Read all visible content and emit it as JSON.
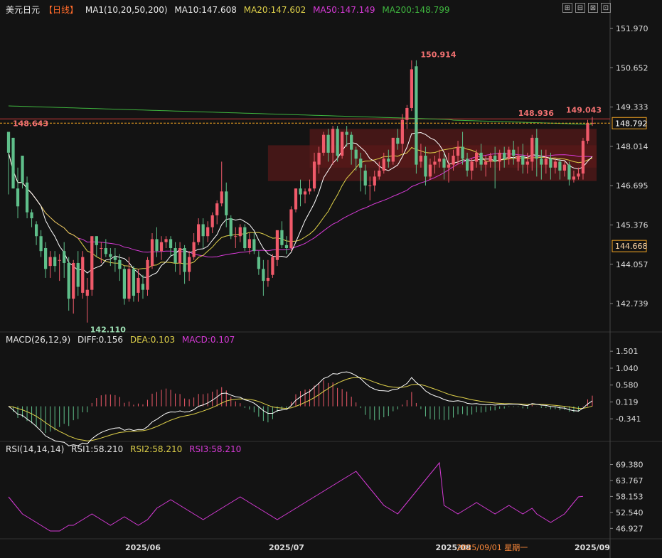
{
  "header": {
    "ticker": "美元日元",
    "period": "【日线】",
    "ma_title": "MA1(10,20,50,200)",
    "ma10": "MA10:147.608",
    "ma20": "MA20:147.602",
    "ma50": "MA50:147.149",
    "ma200": "MA200:148.799",
    "tools": [
      "⊞",
      "⊟",
      "⊠",
      "⊡"
    ]
  },
  "colors": {
    "up": "#f05a6a",
    "down": "#5fbf8a",
    "ma10": "#ffffff",
    "ma20": "#e0d24a",
    "ma50": "#d63ad6",
    "ma200": "#3fb63f",
    "zone": "#5a1a1a",
    "last": "#f5a623"
  },
  "macd_header": {
    "title": "MACD(26,12,9)",
    "diff": "DIFF:0.156",
    "dea": "DEA:0.103",
    "macd": "MACD:0.107"
  },
  "rsi_header": {
    "title": "RSI(14,14,14)",
    "rsi1": "RSI1:58.210",
    "rsi2": "RSI2:58.210",
    "rsi3": "RSI3:58.210"
  },
  "chart_data": [
    {
      "type": "candlestick",
      "series": "USD/JPY daily",
      "ylim": [
        142.0,
        152.4
      ],
      "y_ticks": [
        "151.970",
        "150.652",
        "149.333",
        "148.014",
        "146.695",
        "145.376",
        "144.057",
        "142.739"
      ],
      "x_labels": [
        {
          "i": 29,
          "label": "2025/06"
        },
        {
          "i": 60,
          "label": "2025/07"
        },
        {
          "i": 96,
          "label": "2025/08"
        },
        {
          "i": 126,
          "label": "2025/09"
        }
      ],
      "date_label": {
        "i": 113,
        "label": "2025/09/01 星期一"
      },
      "annotations": [
        {
          "i": 17,
          "value": 142.11,
          "label": "142.110",
          "pos": "below"
        },
        {
          "i": 88,
          "value": 150.914,
          "label": "150.914",
          "pos": "above"
        },
        {
          "i": 0,
          "value": 148.643,
          "label": "148.643",
          "pos": "line"
        },
        {
          "i": 118,
          "value": 148.936,
          "label": "148.936",
          "pos": "left"
        },
        {
          "i": 120,
          "value": 149.043,
          "label": "149.043",
          "pos": "right"
        }
      ],
      "horizontal_line": 148.936,
      "last_price": {
        "value": 148.792,
        "label": "148.792"
      },
      "marker_price": {
        "value": 144.668,
        "label": "144.668"
      },
      "zones": [
        {
          "i_start": 65,
          "i_end": 127,
          "low": 147.3,
          "high": 148.6
        },
        {
          "i_start": 56,
          "i_end": 127,
          "low": 146.85,
          "high": 148.05
        }
      ],
      "candles": [
        [
          148.5,
          148.3,
          147.8,
          146.4
        ],
        [
          148.3,
          148.3,
          146.6,
          146.6
        ],
        [
          146.6,
          147.3,
          146.0,
          145.6
        ],
        [
          147.7,
          147.7,
          146.8,
          146.6
        ],
        [
          146.8,
          147.0,
          145.8,
          145.6
        ],
        [
          145.8,
          145.9,
          145.6,
          145.3
        ],
        [
          145.4,
          145.5,
          145.0,
          144.7
        ],
        [
          145.0,
          145.2,
          144.5,
          144.3
        ],
        [
          144.6,
          144.8,
          143.9,
          143.6
        ],
        [
          144.0,
          144.5,
          144.3,
          143.6
        ],
        [
          144.3,
          144.5,
          144.0,
          143.8
        ],
        [
          144.2,
          144.4,
          144.2,
          143.5
        ],
        [
          144.5,
          144.8,
          144.1,
          143.6
        ],
        [
          144.1,
          144.3,
          142.9,
          142.5
        ],
        [
          142.9,
          144.2,
          144.1,
          142.4
        ],
        [
          144.1,
          144.5,
          143.3,
          143.0
        ],
        [
          143.1,
          144.5,
          144.3,
          142.9
        ],
        [
          143.0,
          143.6,
          143.2,
          142.1
        ],
        [
          143.2,
          145.0,
          145.0,
          143.0
        ],
        [
          145.0,
          145.0,
          144.7,
          144.3
        ],
        [
          144.6,
          144.8,
          144.6,
          144.1
        ],
        [
          144.6,
          144.9,
          144.4,
          144.3
        ],
        [
          144.4,
          144.6,
          144.3,
          144.0
        ],
        [
          144.3,
          144.6,
          144.2,
          143.8
        ],
        [
          144.2,
          144.4,
          143.9,
          143.5
        ],
        [
          143.9,
          144.0,
          142.9,
          142.7
        ],
        [
          142.9,
          144.3,
          143.9,
          142.8
        ],
        [
          143.9,
          144.0,
          143.0,
          142.8
        ],
        [
          143.1,
          143.9,
          143.6,
          142.8
        ],
        [
          143.4,
          143.7,
          143.2,
          142.9
        ],
        [
          143.2,
          144.3,
          144.2,
          143.0
        ],
        [
          144.0,
          145.1,
          144.9,
          143.9
        ],
        [
          144.9,
          145.3,
          144.5,
          144.3
        ],
        [
          144.5,
          145.0,
          144.8,
          144.2
        ],
        [
          144.8,
          145.0,
          144.9,
          144.6
        ],
        [
          144.9,
          145.0,
          144.6,
          144.3
        ],
        [
          144.6,
          144.8,
          144.1,
          143.8
        ],
        [
          144.1,
          144.8,
          144.6,
          143.7
        ],
        [
          144.6,
          144.7,
          143.8,
          143.4
        ],
        [
          143.8,
          144.5,
          144.3,
          143.5
        ],
        [
          144.3,
          145.1,
          144.8,
          144.2
        ],
        [
          144.8,
          145.6,
          145.4,
          144.7
        ],
        [
          145.4,
          145.6,
          145.0,
          144.6
        ],
        [
          145.0,
          145.5,
          145.3,
          144.8
        ],
        [
          145.3,
          145.8,
          145.7,
          145.1
        ],
        [
          145.7,
          146.2,
          146.1,
          145.4
        ],
        [
          146.1,
          147.5,
          146.5,
          146.0
        ],
        [
          146.5,
          146.8,
          145.7,
          145.3
        ],
        [
          145.6,
          145.7,
          145.0,
          144.9
        ],
        [
          145.0,
          145.3,
          145.0,
          144.6
        ],
        [
          145.0,
          145.4,
          145.3,
          144.8
        ],
        [
          145.3,
          145.4,
          144.6,
          144.5
        ],
        [
          144.6,
          145.1,
          144.9,
          144.4
        ],
        [
          144.9,
          145.1,
          144.5,
          144.4
        ],
        [
          144.3,
          144.5,
          143.9,
          143.7
        ],
        [
          143.9,
          144.2,
          143.5,
          143.0
        ],
        [
          143.5,
          144.2,
          143.6,
          143.3
        ],
        [
          143.7,
          144.4,
          144.3,
          143.6
        ],
        [
          144.2,
          145.2,
          145.2,
          144.0
        ],
        [
          145.2,
          145.5,
          144.7,
          144.6
        ],
        [
          144.7,
          145.0,
          144.6,
          144.4
        ],
        [
          144.6,
          146.0,
          145.9,
          144.5
        ],
        [
          145.9,
          146.6,
          146.6,
          145.8
        ],
        [
          146.6,
          146.9,
          146.4,
          146.0
        ],
        [
          146.4,
          146.6,
          146.5,
          146.1
        ],
        [
          146.5,
          146.9,
          146.6,
          146.4
        ],
        [
          146.6,
          147.8,
          147.5,
          146.5
        ],
        [
          147.4,
          148.0,
          147.8,
          147.1
        ],
        [
          147.8,
          148.5,
          148.4,
          147.7
        ],
        [
          148.4,
          148.6,
          147.8,
          147.5
        ],
        [
          147.8,
          148.7,
          148.6,
          147.4
        ],
        [
          148.6,
          148.7,
          147.7,
          147.5
        ],
        [
          147.7,
          148.3,
          148.5,
          147.6
        ],
        [
          148.5,
          148.7,
          148.4,
          148.0
        ],
        [
          148.4,
          148.5,
          147.9,
          147.4
        ],
        [
          147.9,
          148.0,
          147.6,
          147.2
        ],
        [
          147.6,
          147.8,
          147.3,
          146.5
        ],
        [
          147.2,
          147.4,
          146.7,
          146.4
        ],
        [
          146.7,
          147.0,
          146.7,
          146.2
        ],
        [
          146.7,
          147.2,
          147.0,
          146.5
        ],
        [
          147.0,
          147.5,
          147.2,
          146.9
        ],
        [
          147.2,
          147.8,
          147.6,
          147.1
        ],
        [
          147.6,
          147.9,
          147.5,
          147.3
        ],
        [
          147.5,
          148.3,
          148.3,
          147.4
        ],
        [
          148.3,
          148.6,
          148.1,
          147.9
        ],
        [
          148.1,
          149.1,
          148.9,
          147.8
        ],
        [
          148.9,
          149.4,
          149.3,
          148.6
        ],
        [
          149.3,
          150.9,
          150.6,
          149.2
        ],
        [
          150.7,
          150.9,
          147.4,
          147.1
        ],
        [
          147.5,
          148.1,
          147.7,
          147.3
        ],
        [
          147.7,
          148.0,
          147.0,
          146.7
        ],
        [
          147.0,
          147.6,
          147.4,
          146.9
        ],
        [
          147.4,
          147.7,
          147.5,
          147.1
        ],
        [
          147.5,
          147.9,
          147.6,
          147.3
        ],
        [
          147.6,
          147.8,
          147.3,
          146.9
        ],
        [
          147.3,
          147.8,
          147.4,
          146.8
        ],
        [
          147.4,
          147.9,
          147.7,
          147.2
        ],
        [
          147.7,
          148.2,
          148.0,
          147.4
        ],
        [
          148.0,
          148.5,
          147.6,
          147.4
        ],
        [
          147.6,
          147.8,
          147.2,
          147.0
        ],
        [
          147.2,
          147.6,
          147.5,
          146.9
        ],
        [
          147.5,
          147.9,
          147.8,
          147.3
        ],
        [
          147.8,
          148.1,
          147.4,
          147.2
        ],
        [
          147.4,
          147.7,
          147.5,
          147.0
        ],
        [
          147.5,
          147.8,
          147.7,
          147.3
        ],
        [
          147.7,
          148.0,
          147.5,
          146.6
        ],
        [
          147.5,
          147.9,
          147.8,
          147.2
        ],
        [
          147.8,
          148.0,
          147.6,
          147.3
        ],
        [
          147.6,
          148.0,
          147.9,
          147.4
        ],
        [
          147.9,
          148.2,
          147.7,
          147.4
        ],
        [
          147.5,
          148.0,
          147.7,
          147.2
        ],
        [
          147.7,
          148.1,
          147.4,
          147.1
        ],
        [
          147.4,
          147.8,
          147.5,
          147.1
        ],
        [
          147.5,
          148.4,
          148.3,
          147.2
        ],
        [
          148.3,
          148.6,
          147.6,
          147.0
        ],
        [
          147.6,
          147.9,
          147.4,
          146.9
        ],
        [
          147.4,
          147.9,
          147.6,
          147.1
        ],
        [
          147.6,
          147.8,
          147.3,
          146.9
        ],
        [
          147.3,
          147.6,
          147.5,
          147.1
        ],
        [
          147.5,
          147.6,
          147.2,
          146.9
        ],
        [
          147.2,
          147.5,
          147.4,
          147.0
        ],
        [
          147.4,
          147.5,
          146.9,
          146.7
        ],
        [
          146.9,
          147.2,
          147.0,
          146.8
        ],
        [
          147.0,
          147.3,
          147.1,
          146.9
        ],
        [
          147.1,
          148.3,
          148.2,
          146.9
        ],
        [
          148.2,
          148.9,
          148.8,
          148.1
        ],
        [
          148.8,
          149.0,
          148.8,
          148.7
        ]
      ]
    },
    {
      "type": "line+bar",
      "series": "MACD",
      "ylim": [
        -0.55,
        1.62
      ],
      "y_ticks": [
        "1.501",
        "1.040",
        "0.580",
        "0.119",
        "-0.341"
      ],
      "zero_value": 0.0
    },
    {
      "type": "line",
      "series": "RSI",
      "ylim": [
        44.0,
        72.0
      ],
      "y_ticks": [
        "69.380",
        "63.767",
        "58.153",
        "52.540",
        "46.927"
      ],
      "rsi1": [
        58,
        56,
        54,
        52,
        51,
        50,
        49,
        48,
        47,
        46,
        46,
        46,
        47,
        48,
        48,
        49,
        50,
        51,
        52,
        51,
        50,
        49,
        48,
        49,
        50,
        51,
        50,
        49,
        48,
        49,
        50,
        52,
        54,
        55,
        56,
        57,
        56,
        55,
        54,
        53,
        52,
        51,
        50,
        51,
        52,
        53,
        54,
        55,
        56,
        57,
        58,
        57,
        56,
        55,
        54,
        53,
        52,
        51,
        50,
        51,
        52,
        53,
        54,
        55,
        56,
        57,
        58,
        59,
        60,
        61,
        62,
        63,
        64,
        65,
        66,
        67,
        65,
        63,
        61,
        59,
        57,
        55,
        54,
        53,
        52,
        54,
        56,
        58,
        60,
        62,
        64,
        66,
        68,
        70,
        55,
        54,
        53,
        52,
        53,
        54,
        55,
        56,
        55,
        54,
        53,
        52,
        53,
        54,
        55,
        54,
        53,
        52,
        53,
        54,
        52,
        51,
        50,
        49,
        50,
        51,
        52,
        54,
        56,
        58,
        58.2
      ]
    }
  ]
}
